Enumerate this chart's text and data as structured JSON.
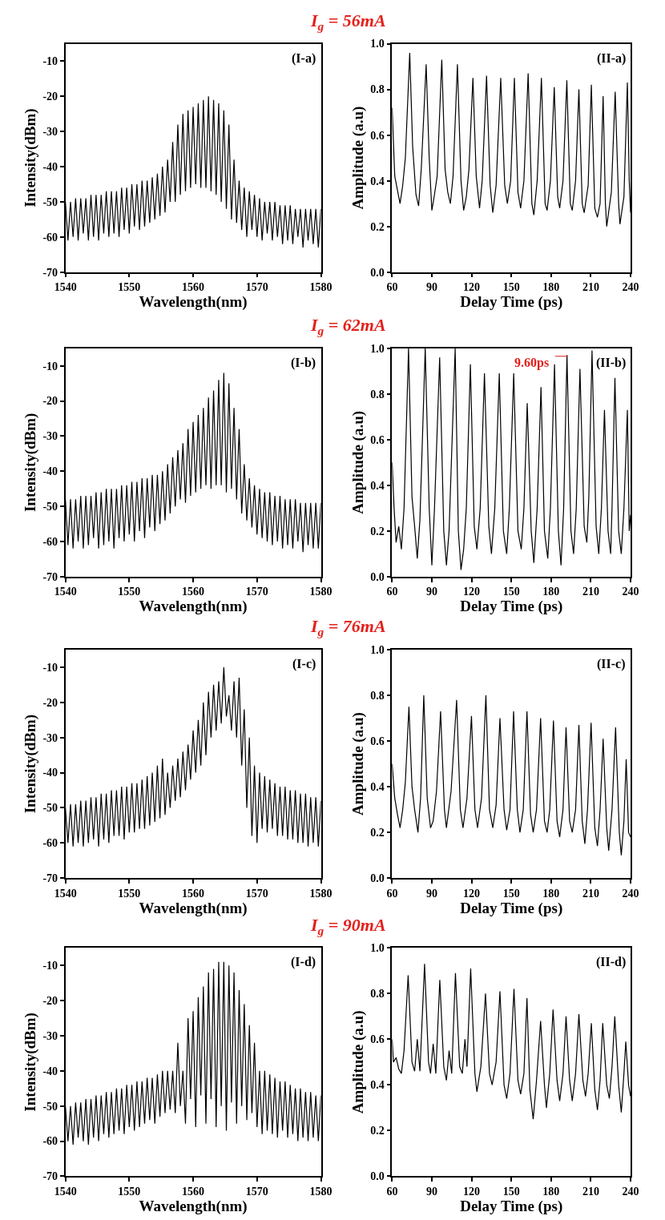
{
  "chart_data": [
    {
      "type": "line",
      "title": "I$_{g}$ = 56mA",
      "xlabel": "Wavelength(nm)",
      "ylabel": "Intensity(dBm)",
      "annotations": [
        "(I-a)"
      ],
      "xlim": [
        1540,
        1580
      ],
      "xticks": [
        1540,
        1550,
        1560,
        1570,
        1580
      ],
      "ylim": [
        -70,
        -5
      ],
      "yticks": [
        -70,
        -60,
        -50,
        -40,
        -30,
        -20,
        -10
      ],
      "x": [
        1540,
        1540.4,
        1540.8,
        1541.2,
        1541.6,
        1542,
        1542.4,
        1542.8,
        1543.2,
        1543.6,
        1544,
        1544.4,
        1544.8,
        1545.2,
        1545.6,
        1546,
        1546.4,
        1546.8,
        1547.2,
        1547.6,
        1548,
        1548.4,
        1548.8,
        1549.2,
        1549.6,
        1550,
        1550.4,
        1550.8,
        1551.2,
        1551.6,
        1552,
        1552.4,
        1552.8,
        1553.2,
        1553.6,
        1554,
        1554.4,
        1554.8,
        1555.2,
        1555.6,
        1556,
        1556.4,
        1556.8,
        1557.2,
        1557.6,
        1558,
        1558.4,
        1558.8,
        1559.2,
        1559.6,
        1560,
        1560.4,
        1560.8,
        1561.2,
        1561.6,
        1562,
        1562.4,
        1562.8,
        1563.2,
        1563.6,
        1564,
        1564.4,
        1564.8,
        1565.2,
        1565.6,
        1566,
        1566.4,
        1566.8,
        1567.2,
        1567.6,
        1568,
        1568.4,
        1568.8,
        1569.2,
        1569.6,
        1570,
        1570.4,
        1570.8,
        1571.2,
        1571.6,
        1572,
        1572.4,
        1572.8,
        1573.2,
        1573.6,
        1574,
        1574.4,
        1574.8,
        1575.2,
        1575.6,
        1576,
        1576.4,
        1576.8,
        1577.2,
        1577.6,
        1578,
        1578.4,
        1578.8,
        1579.2,
        1579.6,
        1580
      ],
      "series": [
        {
          "color": "#000000",
          "values": [
            -50,
            -61,
            -50,
            -60,
            -49,
            -61,
            -49,
            -59,
            -49,
            -61,
            -48,
            -60,
            -48,
            -61,
            -48,
            -59,
            -47,
            -60,
            -47,
            -59,
            -47,
            -60,
            -46,
            -58,
            -46,
            -59,
            -45,
            -57,
            -45,
            -58,
            -44,
            -57,
            -44,
            -56,
            -43,
            -55,
            -42,
            -54,
            -40,
            -53,
            -38,
            -50,
            -33,
            -50,
            -28,
            -48,
            -25,
            -47,
            -24,
            -46,
            -23,
            -45,
            -22,
            -46,
            -21,
            -46,
            -20,
            -47,
            -21,
            -48,
            -22,
            -50,
            -24,
            -52,
            -28,
            -55,
            -38,
            -56,
            -44,
            -58,
            -46,
            -60,
            -47,
            -58,
            -48,
            -60,
            -49,
            -61,
            -50,
            -59,
            -50,
            -61,
            -50,
            -60,
            -51,
            -62,
            -51,
            -61,
            -51,
            -62,
            -52,
            -60,
            -52,
            -63,
            -52,
            -61,
            -52,
            -62,
            -52,
            -63,
            -52
          ]
        }
      ]
    },
    {
      "type": "line",
      "xlabel": "Delay Time (ps)",
      "ylabel": "Amplitude (a.u)",
      "annotations": [
        "(II-a)"
      ],
      "xlim": [
        60,
        240
      ],
      "xticks": [
        60,
        90,
        120,
        150,
        180,
        210,
        240
      ],
      "ylim": [
        0,
        1
      ],
      "yticks": [
        {
          "value": 0,
          "label": "0.0"
        },
        {
          "value": 0.2,
          "label": "0.2"
        },
        {
          "value": 0.4,
          "label": "0.4"
        },
        {
          "value": 0.6,
          "label": "0.6"
        },
        {
          "value": 0.8,
          "label": "0.8"
        },
        {
          "value": 1,
          "label": "1.0"
        }
      ],
      "x": [
        60,
        62,
        64,
        66,
        68,
        70,
        73.3,
        75.5,
        78,
        80,
        82,
        85.7,
        88,
        90,
        92,
        94,
        97.5,
        100,
        102,
        104,
        106,
        109.3,
        112,
        114,
        116,
        118,
        121,
        123.5,
        126,
        128,
        131.3,
        134,
        136,
        138.5,
        142,
        145,
        147,
        149.5,
        152.3,
        155,
        157,
        159.5,
        162.7,
        165.5,
        167,
        169.5,
        172.7,
        175.5,
        177,
        179.5,
        182.4,
        185,
        186.5,
        189,
        191.9,
        194.5,
        196,
        198.5,
        201,
        203.5,
        205,
        208,
        210.4,
        213,
        215,
        217,
        219.3,
        221,
        222,
        225.5,
        228.4,
        231,
        232,
        235,
        237.6,
        239,
        240
      ],
      "series": [
        {
          "color": "#000000",
          "values": [
            0.72,
            0.42,
            0.36,
            0.3,
            0.38,
            0.5,
            0.96,
            0.55,
            0.34,
            0.29,
            0.45,
            0.91,
            0.5,
            0.27,
            0.34,
            0.42,
            0.93,
            0.45,
            0.35,
            0.3,
            0.42,
            0.91,
            0.4,
            0.27,
            0.33,
            0.45,
            0.85,
            0.42,
            0.28,
            0.4,
            0.86,
            0.38,
            0.26,
            0.38,
            0.85,
            0.38,
            0.3,
            0.4,
            0.85,
            0.35,
            0.28,
            0.4,
            0.87,
            0.3,
            0.25,
            0.4,
            0.85,
            0.3,
            0.27,
            0.4,
            0.81,
            0.33,
            0.28,
            0.4,
            0.84,
            0.3,
            0.27,
            0.4,
            0.8,
            0.3,
            0.26,
            0.38,
            0.82,
            0.28,
            0.24,
            0.3,
            0.77,
            0.3,
            0.2,
            0.35,
            0.79,
            0.3,
            0.21,
            0.33,
            0.83,
            0.4,
            0.26
          ]
        }
      ]
    },
    {
      "type": "line",
      "title": "I$_{g}$ = 62mA",
      "xlabel": "Wavelength(nm)",
      "ylabel": "Intensity(dBm)",
      "annotations": [
        "(I-b)"
      ],
      "xlim": [
        1540,
        1580
      ],
      "xticks": [
        1540,
        1550,
        1560,
        1570,
        1580
      ],
      "ylim": [
        -70,
        -5
      ],
      "yticks": [
        -70,
        -60,
        -50,
        -40,
        -30,
        -20,
        -10
      ],
      "x": [
        1540,
        1540.4,
        1540.8,
        1541.2,
        1541.6,
        1542,
        1542.4,
        1542.8,
        1543.2,
        1543.6,
        1544,
        1544.4,
        1544.8,
        1545.2,
        1545.6,
        1546,
        1546.4,
        1546.8,
        1547.2,
        1547.6,
        1548,
        1548.4,
        1548.8,
        1549.2,
        1549.6,
        1550,
        1550.4,
        1550.8,
        1551.2,
        1551.6,
        1552,
        1552.4,
        1552.8,
        1553.2,
        1553.6,
        1554,
        1554.4,
        1554.8,
        1555.2,
        1555.6,
        1556,
        1556.4,
        1556.8,
        1557.2,
        1557.6,
        1558,
        1558.4,
        1558.8,
        1559.2,
        1559.6,
        1560,
        1560.4,
        1560.8,
        1561.2,
        1561.6,
        1562,
        1562.4,
        1562.8,
        1563.2,
        1563.6,
        1564,
        1564.4,
        1564.8,
        1565.2,
        1565.6,
        1566,
        1566.4,
        1566.8,
        1567.2,
        1567.6,
        1568,
        1568.4,
        1568.8,
        1569.2,
        1569.6,
        1570,
        1570.4,
        1570.8,
        1571.2,
        1571.6,
        1572,
        1572.4,
        1572.8,
        1573.2,
        1573.6,
        1574,
        1574.4,
        1574.8,
        1575.2,
        1575.6,
        1576,
        1576.4,
        1576.8,
        1577.2,
        1577.6,
        1578,
        1578.4,
        1578.8,
        1579.2,
        1579.6,
        1580
      ],
      "series": [
        {
          "color": "#000000",
          "values": [
            -48,
            -61,
            -48,
            -62,
            -48,
            -60,
            -47,
            -62,
            -47,
            -61,
            -47,
            -59,
            -46,
            -62,
            -46,
            -61,
            -45,
            -60,
            -45,
            -62,
            -45,
            -59,
            -44,
            -60,
            -44,
            -58,
            -43,
            -60,
            -43,
            -57,
            -42,
            -59,
            -42,
            -56,
            -41,
            -57,
            -41,
            -55,
            -40,
            -54,
            -38,
            -52,
            -36,
            -50,
            -34,
            -48,
            -32,
            -49,
            -28,
            -47,
            -26,
            -46,
            -24,
            -45,
            -22,
            -44,
            -19,
            -45,
            -17,
            -44,
            -14,
            -44,
            -12,
            -46,
            -15,
            -45,
            -22,
            -48,
            -28,
            -52,
            -38,
            -54,
            -42,
            -56,
            -44,
            -58,
            -45,
            -59,
            -46,
            -60,
            -46,
            -61,
            -47,
            -60,
            -47,
            -62,
            -48,
            -61,
            -48,
            -62,
            -48,
            -60,
            -49,
            -63,
            -49,
            -61,
            -49,
            -62,
            -49,
            -62,
            -49
          ]
        }
      ]
    },
    {
      "type": "line",
      "xlabel": "Delay Time (ps)",
      "ylabel": "Amplitude (a.u)",
      "annotations": [
        "(II-b)",
        "9.60ps"
      ],
      "xlim": [
        60,
        240
      ],
      "xticks": [
        60,
        90,
        120,
        150,
        180,
        210,
        240
      ],
      "ylim": [
        0,
        1
      ],
      "yticks": [
        {
          "value": 0,
          "label": "0.0"
        },
        {
          "value": 0.2,
          "label": "0.2"
        },
        {
          "value": 0.4,
          "label": "0.4"
        },
        {
          "value": 0.6,
          "label": "0.6"
        },
        {
          "value": 0.8,
          "label": "0.8"
        },
        {
          "value": 1,
          "label": "1.0"
        }
      ],
      "x": [
        60,
        61.5,
        63,
        65,
        67,
        69,
        72.4,
        75,
        77,
        79,
        81,
        85,
        88,
        90,
        92,
        95.9,
        99,
        101,
        103,
        107.6,
        110,
        112,
        114,
        116,
        119.1,
        122,
        124,
        126.5,
        129.7,
        133,
        135,
        137.5,
        140.9,
        144,
        146.5,
        148.5,
        151.8,
        155,
        157.5,
        159.5,
        162,
        165,
        167,
        169.5,
        172.4,
        175,
        177.5,
        179.5,
        182.6,
        185.5,
        187.5,
        189.5,
        192,
        195,
        197,
        199,
        201.8,
        205,
        207,
        208.5,
        210.9,
        214,
        216,
        218,
        220.3,
        223,
        225,
        226,
        228.2,
        231,
        233,
        235,
        237.6,
        239,
        240
      ],
      "series": [
        {
          "color": "#000000",
          "values": [
            0.5,
            0.3,
            0.15,
            0.22,
            0.12,
            0.3,
            1.0,
            0.35,
            0.22,
            0.08,
            0.25,
            1.0,
            0.3,
            0.05,
            0.3,
            0.96,
            0.2,
            0.05,
            0.2,
            1.0,
            0.2,
            0.03,
            0.12,
            0.3,
            0.93,
            0.22,
            0.12,
            0.3,
            0.89,
            0.22,
            0.1,
            0.3,
            0.89,
            0.2,
            0.1,
            0.3,
            0.89,
            0.2,
            0.12,
            0.3,
            0.76,
            0.2,
            0.06,
            0.3,
            0.83,
            0.2,
            0.08,
            0.3,
            0.93,
            0.2,
            0.05,
            0.3,
            0.97,
            0.2,
            0.1,
            0.3,
            0.91,
            0.22,
            0.15,
            0.35,
            0.99,
            0.22,
            0.1,
            0.3,
            0.73,
            0.2,
            0.1,
            0.3,
            0.87,
            0.2,
            0.1,
            0.3,
            0.73,
            0.2,
            0.27
          ]
        },
        {
          "type": "line",
          "color": "#e3211c",
          "x": [
            183,
            192.6
          ],
          "values": [
            0.965,
            0.965
          ]
        }
      ]
    },
    {
      "type": "line",
      "title": "I$_{g}$ = 76mA",
      "xlabel": "Wavelength(nm)",
      "ylabel": "Intensity(dBm)",
      "annotations": [
        "(I-c)"
      ],
      "xlim": [
        1540,
        1580
      ],
      "xticks": [
        1540,
        1550,
        1560,
        1570,
        1580
      ],
      "ylim": [
        -70,
        -5
      ],
      "yticks": [
        -70,
        -60,
        -50,
        -40,
        -30,
        -20,
        -10
      ],
      "x": [
        1540,
        1540.4,
        1540.8,
        1541.2,
        1541.6,
        1542,
        1542.4,
        1542.8,
        1543.2,
        1543.6,
        1544,
        1544.4,
        1544.8,
        1545.2,
        1545.6,
        1546,
        1546.4,
        1546.8,
        1547.2,
        1547.6,
        1548,
        1548.4,
        1548.8,
        1549.2,
        1549.6,
        1550,
        1550.4,
        1550.8,
        1551.2,
        1551.6,
        1552,
        1552.4,
        1552.8,
        1553.2,
        1553.6,
        1554,
        1554.4,
        1554.8,
        1555.2,
        1555.6,
        1556,
        1556.4,
        1556.8,
        1557.2,
        1557.6,
        1558,
        1558.4,
        1558.8,
        1559.2,
        1559.6,
        1560,
        1560.4,
        1560.8,
        1561.2,
        1561.6,
        1562,
        1562.4,
        1562.8,
        1563.2,
        1563.6,
        1564,
        1564.4,
        1564.8,
        1565.2,
        1565.6,
        1566,
        1566.4,
        1566.8,
        1567.2,
        1567.6,
        1568,
        1568.4,
        1568.8,
        1569.2,
        1569.6,
        1570,
        1570.4,
        1570.8,
        1571.2,
        1571.6,
        1572,
        1572.4,
        1572.8,
        1573.2,
        1573.6,
        1574,
        1574.4,
        1574.8,
        1575.2,
        1575.6,
        1576,
        1576.4,
        1576.8,
        1577.2,
        1577.6,
        1578,
        1578.4,
        1578.8,
        1579.2,
        1579.6,
        1580
      ],
      "series": [
        {
          "color": "#000000",
          "values": [
            -50,
            -60,
            -49,
            -61,
            -49,
            -60,
            -48,
            -61,
            -48,
            -60,
            -47,
            -59,
            -47,
            -61,
            -46,
            -59,
            -46,
            -60,
            -45,
            -58,
            -45,
            -58,
            -44,
            -59,
            -44,
            -57,
            -43,
            -57,
            -43,
            -56,
            -42,
            -56,
            -41,
            -55,
            -40,
            -54,
            -38,
            -53,
            -36,
            -52,
            -40,
            -50,
            -38,
            -48,
            -36,
            -47,
            -34,
            -45,
            -32,
            -42,
            -28,
            -40,
            -25,
            -38,
            -20,
            -35,
            -17,
            -30,
            -15,
            -28,
            -14,
            -26,
            -10,
            -24,
            -18,
            -28,
            -14,
            -30,
            -13,
            -38,
            -22,
            -50,
            -30,
            -58,
            -38,
            -60,
            -40,
            -56,
            -41,
            -57,
            -42,
            -56,
            -43,
            -58,
            -44,
            -58,
            -44,
            -59,
            -45,
            -59,
            -45,
            -60,
            -46,
            -60,
            -46,
            -61,
            -47,
            -60,
            -47,
            -61,
            -48
          ]
        }
      ]
    },
    {
      "type": "line",
      "xlabel": "Delay Time (ps)",
      "ylabel": "Amplitude (a.u)",
      "annotations": [
        "(II-c)"
      ],
      "xlim": [
        60,
        240
      ],
      "xticks": [
        60,
        90,
        120,
        150,
        180,
        210,
        240
      ],
      "ylim": [
        0,
        1
      ],
      "yticks": [
        {
          "value": 0,
          "label": "0.0"
        },
        {
          "value": 0.2,
          "label": "0.2"
        },
        {
          "value": 0.4,
          "label": "0.4"
        },
        {
          "value": 0.6,
          "label": "0.6"
        },
        {
          "value": 0.8,
          "label": "0.8"
        },
        {
          "value": 1,
          "label": "1.0"
        }
      ],
      "x": [
        60,
        62,
        64,
        66,
        68,
        70,
        72.7,
        75,
        77,
        79.5,
        81.5,
        83.9,
        86.5,
        89,
        91,
        93.5,
        96.6,
        99.5,
        101,
        104.5,
        108.7,
        111.5,
        113.5,
        116.5,
        119.9,
        122.5,
        124.5,
        127.5,
        130.8,
        133.5,
        136,
        138.5,
        141.4,
        144.5,
        146.5,
        149,
        151.7,
        154.5,
        156.5,
        159,
        161.8,
        164.5,
        166.5,
        169,
        172.1,
        175,
        177,
        179,
        181.8,
        184.5,
        186.5,
        189,
        191.3,
        194,
        196,
        198.5,
        201,
        203.5,
        205.5,
        207.5,
        210.2,
        213,
        215,
        217,
        219.3,
        222,
        223.5,
        226,
        228.7,
        231.5,
        233,
        235,
        236.7,
        238.5,
        240
      ],
      "series": [
        {
          "color": "#000000",
          "values": [
            0.5,
            0.35,
            0.28,
            0.22,
            0.3,
            0.42,
            0.75,
            0.4,
            0.3,
            0.2,
            0.35,
            0.8,
            0.35,
            0.22,
            0.25,
            0.38,
            0.73,
            0.3,
            0.22,
            0.38,
            0.78,
            0.3,
            0.22,
            0.35,
            0.71,
            0.3,
            0.22,
            0.35,
            0.8,
            0.3,
            0.22,
            0.32,
            0.7,
            0.3,
            0.21,
            0.3,
            0.73,
            0.3,
            0.2,
            0.3,
            0.73,
            0.28,
            0.2,
            0.3,
            0.7,
            0.25,
            0.2,
            0.3,
            0.69,
            0.25,
            0.18,
            0.3,
            0.66,
            0.25,
            0.2,
            0.3,
            0.67,
            0.25,
            0.15,
            0.3,
            0.68,
            0.22,
            0.14,
            0.3,
            0.61,
            0.22,
            0.12,
            0.3,
            0.66,
            0.2,
            0.1,
            0.25,
            0.52,
            0.2,
            0.18
          ]
        }
      ]
    },
    {
      "type": "line",
      "title": "I$_{g}$ = 90mA",
      "xlabel": "Wavelength(nm)",
      "ylabel": "Intensity(dBm)",
      "annotations": [
        "(I-d)"
      ],
      "xlim": [
        1540,
        1580
      ],
      "xticks": [
        1540,
        1550,
        1560,
        1570,
        1580
      ],
      "ylim": [
        -70,
        -5
      ],
      "yticks": [
        -70,
        -60,
        -50,
        -40,
        -30,
        -20,
        -10
      ],
      "x": [
        1540,
        1540.4,
        1540.8,
        1541.2,
        1541.6,
        1542,
        1542.4,
        1542.8,
        1543.2,
        1543.6,
        1544,
        1544.4,
        1544.8,
        1545.2,
        1545.6,
        1546,
        1546.4,
        1546.8,
        1547.2,
        1547.6,
        1548,
        1548.4,
        1548.8,
        1549.2,
        1549.6,
        1550,
        1550.4,
        1550.8,
        1551.2,
        1551.6,
        1552,
        1552.4,
        1552.8,
        1553.2,
        1553.6,
        1554,
        1554.4,
        1554.8,
        1555.2,
        1555.6,
        1556,
        1556.4,
        1556.8,
        1557.2,
        1557.6,
        1558,
        1558.4,
        1558.8,
        1559.2,
        1559.6,
        1560,
        1560.4,
        1560.8,
        1561.2,
        1561.6,
        1562,
        1562.4,
        1562.8,
        1563.2,
        1563.6,
        1564,
        1564.4,
        1564.8,
        1565.2,
        1565.6,
        1566,
        1566.4,
        1566.8,
        1567.2,
        1567.6,
        1568,
        1568.4,
        1568.8,
        1569.2,
        1569.6,
        1570,
        1570.4,
        1570.8,
        1571.2,
        1571.6,
        1572,
        1572.4,
        1572.8,
        1573.2,
        1573.6,
        1574,
        1574.4,
        1574.8,
        1575.2,
        1575.6,
        1576,
        1576.4,
        1576.8,
        1577.2,
        1577.6,
        1578,
        1578.4,
        1578.8,
        1579.2,
        1579.6,
        1580
      ],
      "series": [
        {
          "color": "#000000",
          "values": [
            -50,
            -60,
            -50,
            -61,
            -49,
            -59,
            -49,
            -60,
            -48,
            -61,
            -48,
            -59,
            -47,
            -60,
            -47,
            -58,
            -46,
            -59,
            -46,
            -58,
            -45,
            -57,
            -45,
            -58,
            -44,
            -56,
            -44,
            -57,
            -43,
            -56,
            -43,
            -55,
            -42,
            -54,
            -42,
            -55,
            -41,
            -53,
            -40,
            -52,
            -40,
            -51,
            -40,
            -52,
            -32,
            -50,
            -40,
            -55,
            -25,
            -48,
            -23,
            -56,
            -19,
            -47,
            -16,
            -55,
            -12,
            -48,
            -11,
            -56,
            -9,
            -50,
            -9,
            -57,
            -10,
            -49,
            -12,
            -55,
            -17,
            -50,
            -21,
            -54,
            -27,
            -52,
            -32,
            -56,
            -40,
            -58,
            -40,
            -57,
            -41,
            -58,
            -42,
            -59,
            -43,
            -57,
            -43,
            -59,
            -44,
            -58,
            -45,
            -60,
            -45,
            -59,
            -46,
            -60,
            -46,
            -59,
            -47,
            -60,
            -47
          ]
        }
      ]
    },
    {
      "type": "line",
      "xlabel": "Delay Time (ps)",
      "ylabel": "Amplitude (a.u)",
      "annotations": [
        "(II-d)"
      ],
      "xlim": [
        60,
        240
      ],
      "xticks": [
        60,
        90,
        120,
        150,
        180,
        210,
        240
      ],
      "ylim": [
        0,
        1
      ],
      "yticks": [
        {
          "value": 0,
          "label": "0.0"
        },
        {
          "value": 0.2,
          "label": "0.2"
        },
        {
          "value": 0.4,
          "label": "0.4"
        },
        {
          "value": 0.6,
          "label": "0.6"
        },
        {
          "value": 0.8,
          "label": "0.8"
        },
        {
          "value": 1,
          "label": "1.0"
        }
      ],
      "x": [
        60,
        61,
        63,
        65,
        67,
        69,
        72.1,
        75,
        77,
        79,
        81,
        84.5,
        87.5,
        89,
        91,
        93,
        96,
        99,
        101,
        103,
        105,
        107.8,
        111,
        113,
        115,
        116.5,
        119.3,
        122.5,
        124,
        127,
        130.5,
        133.5,
        135.5,
        138.5,
        141.4,
        144.5,
        146.5,
        149,
        152,
        155,
        157,
        159.5,
        161.8,
        164,
        166.5,
        169,
        172.1,
        175,
        176.5,
        179,
        181.5,
        184.5,
        186.5,
        189,
        191.3,
        194,
        196,
        198.5,
        201,
        204,
        206,
        208,
        210.4,
        213,
        215,
        217,
        219,
        222,
        224,
        226,
        228.1,
        231,
        233,
        235,
        236.4,
        238.5,
        240
      ],
      "series": [
        {
          "color": "#000000",
          "values": [
            0.6,
            0.5,
            0.52,
            0.47,
            0.45,
            0.55,
            0.88,
            0.5,
            0.46,
            0.6,
            0.46,
            0.93,
            0.5,
            0.45,
            0.58,
            0.45,
            0.86,
            0.48,
            0.42,
            0.55,
            0.45,
            0.89,
            0.48,
            0.45,
            0.6,
            0.48,
            0.91,
            0.45,
            0.37,
            0.48,
            0.8,
            0.45,
            0.4,
            0.5,
            0.81,
            0.4,
            0.34,
            0.45,
            0.82,
            0.42,
            0.36,
            0.45,
            0.78,
            0.38,
            0.25,
            0.42,
            0.68,
            0.4,
            0.3,
            0.45,
            0.73,
            0.42,
            0.33,
            0.45,
            0.7,
            0.42,
            0.33,
            0.45,
            0.71,
            0.42,
            0.35,
            0.45,
            0.67,
            0.38,
            0.29,
            0.42,
            0.67,
            0.4,
            0.34,
            0.48,
            0.7,
            0.4,
            0.28,
            0.45,
            0.59,
            0.4,
            0.35
          ]
        }
      ]
    }
  ]
}
